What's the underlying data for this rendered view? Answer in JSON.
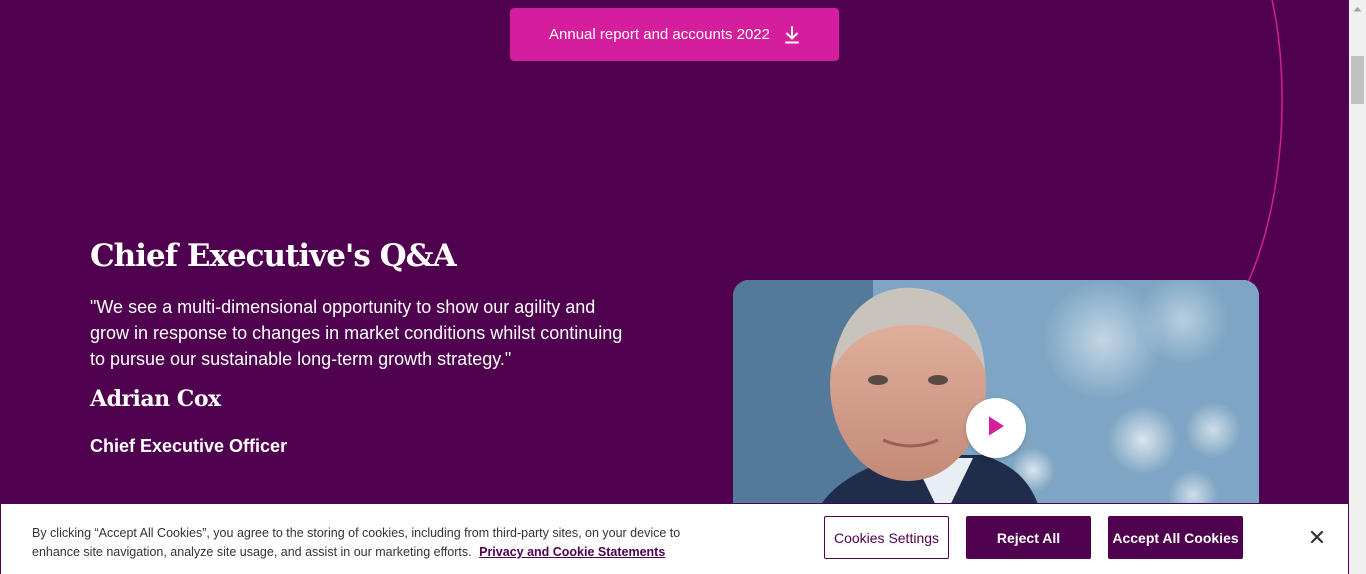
{
  "report_button": {
    "label": "Annual report and accounts 2022",
    "icon": "download-icon"
  },
  "qa": {
    "title": "Chief Executive's Q&A",
    "quote": "\"We see a multi-dimensional opportunity to show our agility and grow in response to changes in market conditions whilst continuing to pursue our sustainable long-term growth strategy.\"",
    "name": "Adrian Cox",
    "role": "Chief Executive Officer"
  },
  "video": {
    "play_icon": "play-icon"
  },
  "cookie_banner": {
    "text": "By clicking “Accept All Cookies”, you agree to the storing of cookies, including from third-party sites, on your device to enhance site navigation, analyze site usage, and assist in our marketing efforts.",
    "policy_link": "Privacy and Cookie Statements",
    "settings_label": "Cookies Settings",
    "reject_label": "Reject All",
    "accept_label": "Accept All Cookies",
    "close_icon": "close-icon"
  },
  "colors": {
    "background": "#4f004f",
    "accent": "#d41e9e",
    "button_dark": "#4f004f"
  }
}
